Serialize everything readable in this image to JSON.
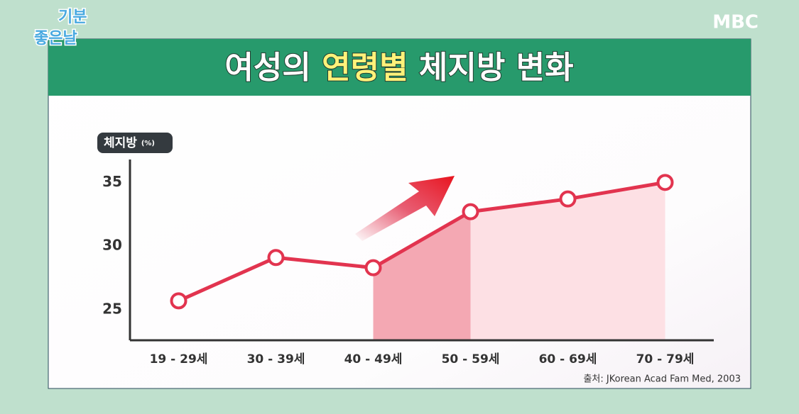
{
  "logo": {
    "line1": "기분",
    "line2": "좋은날"
  },
  "broadcaster": "MBC",
  "chart_data": {
    "type": "line",
    "title_parts": [
      "여성의",
      "연령별",
      "체지방 변화"
    ],
    "y_label": "체지방",
    "y_unit": "(%)",
    "categories": [
      "19 - 29세",
      "30 - 39세",
      "40 - 49세",
      "50 - 59세",
      "60 - 69세",
      "70 - 79세"
    ],
    "series": [
      {
        "name": "체지방",
        "color": "#e2344f",
        "values": [
          25.7,
          29.1,
          28.3,
          32.7,
          33.7,
          35.0
        ]
      }
    ],
    "ylim": [
      22.6,
      36.8
    ],
    "yticks": [
      25,
      30,
      35
    ],
    "grid": false,
    "source": "출처: JKorean Acad Fam Med, 2003"
  }
}
